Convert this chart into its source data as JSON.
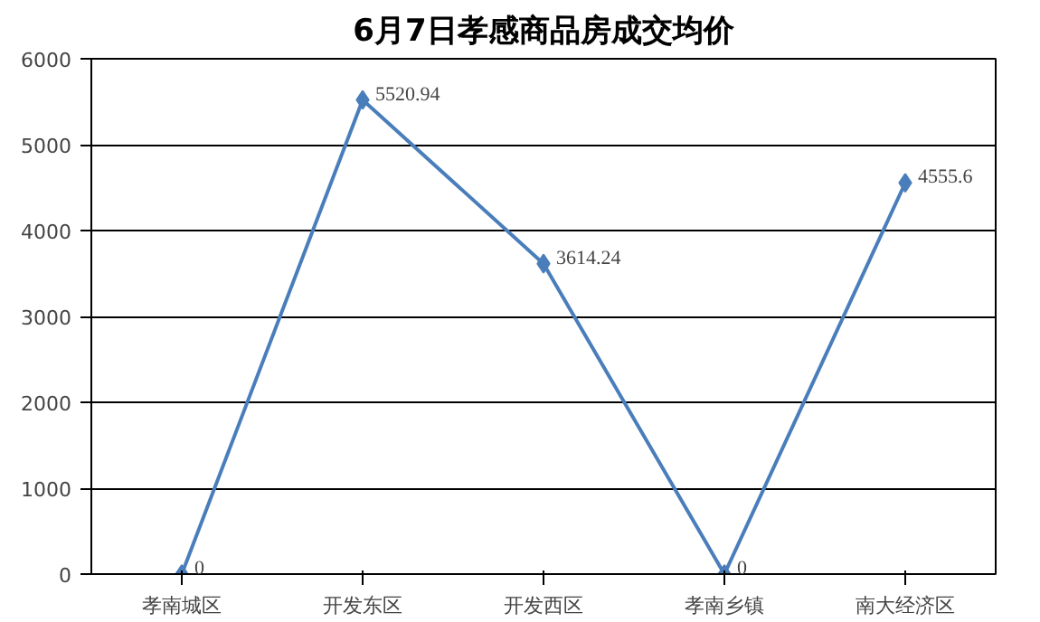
{
  "chart_data": {
    "type": "line",
    "title": "6月7日孝感商品房成交均价",
    "categories": [
      "孝南城区",
      "开发东区",
      "开发西区",
      "孝南乡镇",
      "南大经济区"
    ],
    "series": [
      {
        "color": "#4a7ebb",
        "values": [
          0,
          5520.94,
          3614.24,
          0,
          4555.6
        ]
      }
    ],
    "ylim": [
      0,
      6000
    ],
    "yticks": [
      0,
      1000,
      2000,
      3000,
      4000,
      5000,
      6000
    ],
    "grid": "y",
    "marker": "diamond",
    "line_style": "solid",
    "data_labels": true
  }
}
